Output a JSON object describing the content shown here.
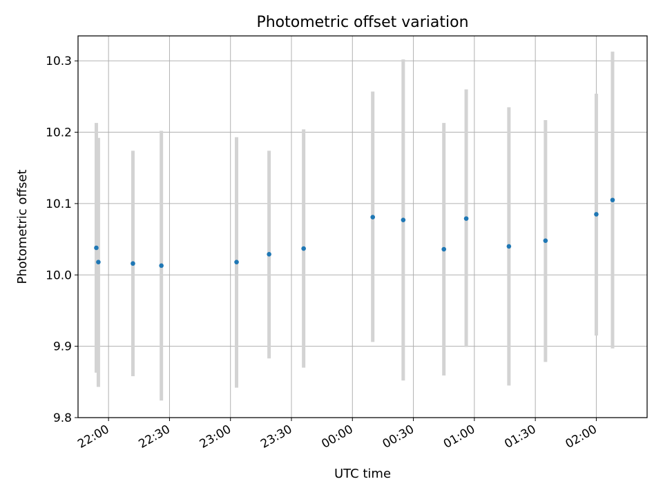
{
  "chart_data": {
    "type": "scatter",
    "title": "Photometric offset variation",
    "xlabel": "UTC time",
    "ylabel": "Photometric offset",
    "x_axis": {
      "kind": "time",
      "range": [
        "21:45",
        "02:25"
      ],
      "ticks": [
        "22:00",
        "22:30",
        "23:00",
        "23:30",
        "00:00",
        "00:30",
        "01:00",
        "01:30",
        "02:00"
      ]
    },
    "ylim": [
      9.8,
      10.335
    ],
    "yticks": [
      "9.8",
      "9.9",
      "10.0",
      "10.1",
      "10.2",
      "10.3"
    ],
    "grid": true,
    "series": [
      {
        "marker_color": "#1f77b4",
        "errorbar_color": "#d3d3d3",
        "points": [
          {
            "x": "21:54",
            "y": 10.038,
            "ylow": 9.863,
            "yhigh": 10.213
          },
          {
            "x": "21:55",
            "y": 10.018,
            "ylow": 9.843,
            "yhigh": 10.192
          },
          {
            "x": "22:12",
            "y": 10.016,
            "ylow": 9.858,
            "yhigh": 10.174
          },
          {
            "x": "22:26",
            "y": 10.013,
            "ylow": 9.824,
            "yhigh": 10.202
          },
          {
            "x": "23:03",
            "y": 10.018,
            "ylow": 9.842,
            "yhigh": 10.193
          },
          {
            "x": "23:19",
            "y": 10.029,
            "ylow": 9.883,
            "yhigh": 10.174
          },
          {
            "x": "23:36",
            "y": 10.037,
            "ylow": 9.87,
            "yhigh": 10.204
          },
          {
            "x": "00:10",
            "y": 10.081,
            "ylow": 9.906,
            "yhigh": 10.257
          },
          {
            "x": "00:25",
            "y": 10.077,
            "ylow": 9.852,
            "yhigh": 10.302
          },
          {
            "x": "00:45",
            "y": 10.036,
            "ylow": 9.859,
            "yhigh": 10.213
          },
          {
            "x": "00:56",
            "y": 10.079,
            "ylow": 9.899,
            "yhigh": 10.26
          },
          {
            "x": "01:17",
            "y": 10.04,
            "ylow": 9.845,
            "yhigh": 10.235
          },
          {
            "x": "01:35",
            "y": 10.048,
            "ylow": 9.878,
            "yhigh": 10.217
          },
          {
            "x": "02:00",
            "y": 10.085,
            "ylow": 9.915,
            "yhigh": 10.254
          },
          {
            "x": "02:08",
            "y": 10.105,
            "ylow": 9.897,
            "yhigh": 10.313
          }
        ]
      }
    ]
  }
}
